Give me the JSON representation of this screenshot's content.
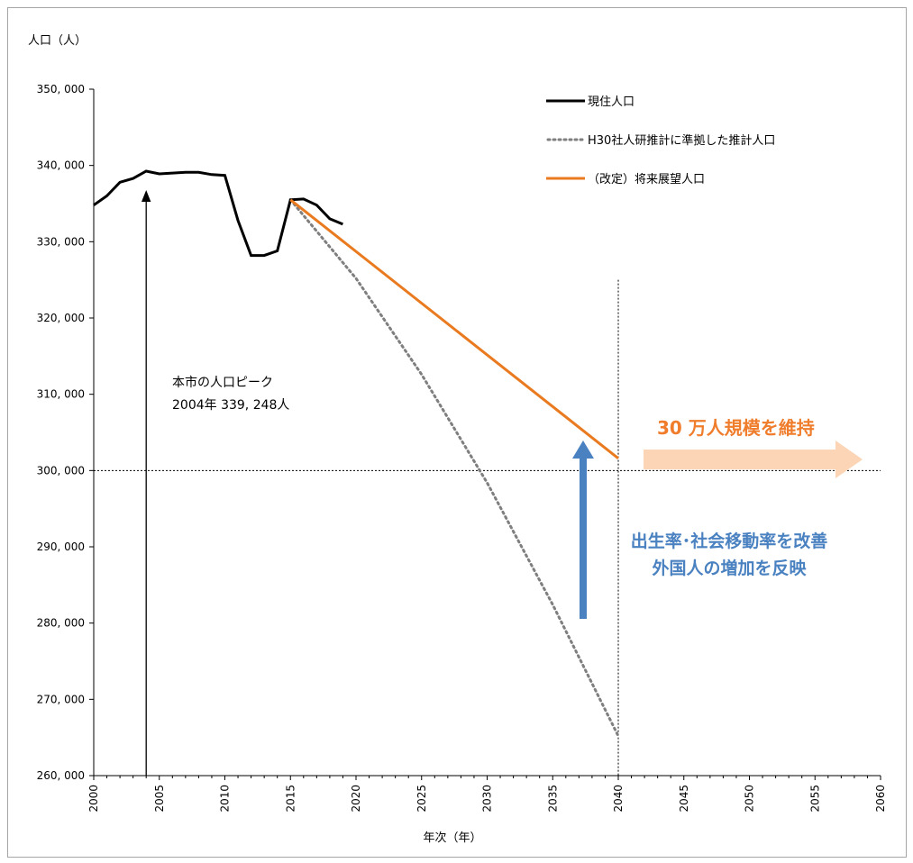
{
  "chart_data": {
    "type": "line",
    "ylabel": "人口（人）",
    "xlabel": "年次（年）",
    "ylim": [
      260000,
      350000
    ],
    "xlim": [
      2000,
      2060
    ],
    "y_ticks": [
      "260, 000",
      "270, 000",
      "280, 000",
      "290, 000",
      "300, 000",
      "310, 000",
      "320, 000",
      "330, 000",
      "340, 000",
      "350, 000"
    ],
    "x_ticks": [
      "2000",
      "2005",
      "2010",
      "2015",
      "2020",
      "2025",
      "2030",
      "2035",
      "2040",
      "2045",
      "2050",
      "2055",
      "2060"
    ],
    "series": [
      {
        "name": "現住人口",
        "color": "#000000",
        "style": "solid",
        "x": [
          2000,
          2001,
          2002,
          2003,
          2004,
          2005,
          2006,
          2007,
          2008,
          2009,
          2010,
          2011,
          2012,
          2013,
          2014,
          2015,
          2016,
          2017,
          2018,
          2019
        ],
        "y": [
          334800,
          336000,
          337800,
          338300,
          339248,
          338900,
          339000,
          339100,
          339100,
          338800,
          338700,
          332800,
          328200,
          328200,
          328800,
          335500,
          335600,
          334800,
          333000,
          332300
        ]
      },
      {
        "name": "H30社人研推計に準拠した推計人口",
        "color": "#7f7f7f",
        "style": "dotted",
        "x": [
          2015,
          2020,
          2025,
          2030,
          2035,
          2040
        ],
        "y": [
          335500,
          325200,
          312600,
          298400,
          282400,
          265200
        ]
      },
      {
        "name": "（改定）将来展望人口",
        "color": "#e97a1f",
        "style": "solid",
        "x": [
          2015,
          2040
        ],
        "y": [
          335500,
          301600
        ]
      }
    ],
    "reference_lines": {
      "horizontal_y": 300000,
      "vertical_x": 2040
    },
    "annotations": {
      "peak_line1": "本市の人口ピーク",
      "peak_line2": "2004年 339, 248人",
      "improve_line1": "出生率･社会移動率を改善",
      "improve_line2": "外国人の増加を反映",
      "maintain": "30 万人規模を維持"
    }
  }
}
